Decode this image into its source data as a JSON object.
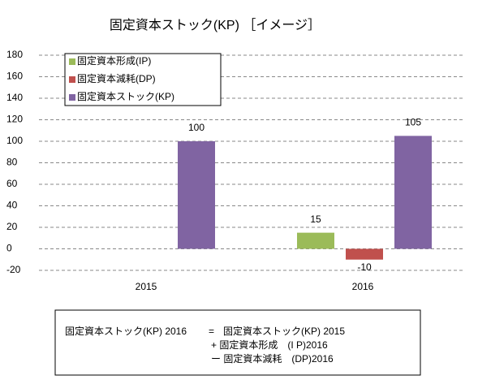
{
  "chart_data": {
    "type": "bar",
    "title": "固定資本ストック(KP) ［イメージ］",
    "categories": [
      "2015",
      "2016"
    ],
    "series": [
      {
        "name": "固定資本形成(IP)",
        "color": "#9bbb59",
        "values": [
          null,
          15
        ]
      },
      {
        "name": "固定資本減耗(DP)",
        "color": "#c0504d",
        "values": [
          null,
          -10
        ]
      },
      {
        "name": "固定資本ストック(KP)",
        "color": "#8064a2",
        "values": [
          100,
          105
        ]
      }
    ],
    "ylim": [
      -20,
      180
    ],
    "yticks": [
      -20,
      0,
      20,
      40,
      60,
      80,
      100,
      120,
      140,
      160,
      180
    ],
    "grid": true,
    "legend": "top-left"
  },
  "formula": {
    "lhs": "固定資本ストック(KP) 2016",
    "eq": "=",
    "terms": [
      "固定資本ストック(KP) 2015",
      "+ 固定資本形成　(I P)2016",
      "ー 固定資本減耗　(DP)2016"
    ]
  }
}
